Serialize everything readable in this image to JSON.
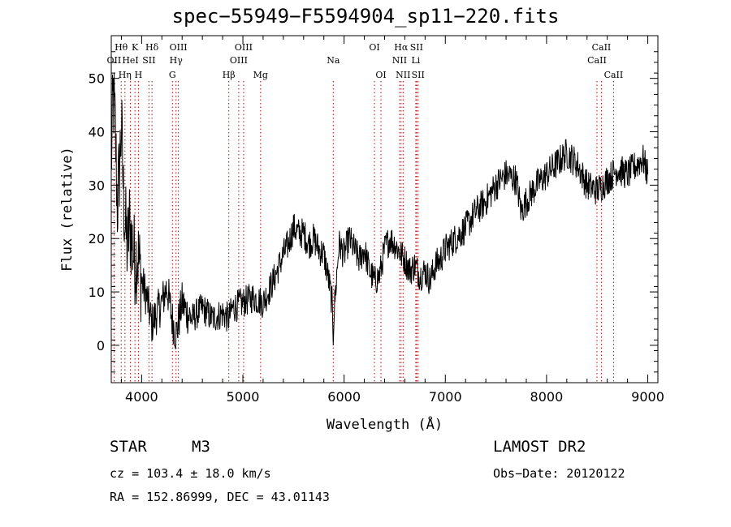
{
  "chart_data": {
    "type": "line",
    "title": "spec−55949−F5594904_sp11−220.fits",
    "xlabel": "Wavelength (Å)",
    "ylabel": "Flux (relative)",
    "xlim": [
      3700,
      9100
    ],
    "ylim": [
      -7,
      58
    ],
    "x_ticks": [
      4000,
      5000,
      6000,
      7000,
      8000,
      9000
    ],
    "x_tick_labels": [
      "4000",
      "5000",
      "6000",
      "7000",
      "8000",
      "9000"
    ],
    "y_ticks": [
      0,
      10,
      20,
      30,
      40,
      50
    ],
    "y_tick_labels": [
      "0",
      "10",
      "20",
      "30",
      "40",
      "50"
    ],
    "series": [
      {
        "color": "#000000",
        "x": [
          3700,
          3720,
          3740,
          3760,
          3780,
          3800,
          3820,
          3840,
          3860,
          3880,
          3900,
          3930,
          3960,
          4000,
          4050,
          4100,
          4150,
          4200,
          4250,
          4300,
          4340,
          4400,
          4450,
          4500,
          4600,
          4700,
          4800,
          4860,
          4900,
          5000,
          5100,
          5200,
          5300,
          5400,
          5450,
          5500,
          5550,
          5600,
          5650,
          5700,
          5750,
          5800,
          5850,
          5880,
          5893,
          5900,
          5950,
          6000,
          6050,
          6100,
          6150,
          6200,
          6250,
          6300,
          6350,
          6400,
          6450,
          6500,
          6563,
          6600,
          6650,
          6700,
          6750,
          6800,
          6850,
          6900,
          6950,
          7000,
          7050,
          7100,
          7150,
          7200,
          7300,
          7400,
          7500,
          7600,
          7700,
          7750,
          7800,
          7900,
          8000,
          8100,
          8200,
          8300,
          8400,
          8500,
          8600,
          8700,
          8800,
          8900,
          8950,
          9000
        ],
        "y": [
          34,
          47,
          40,
          26,
          33,
          41,
          28,
          22,
          18,
          23,
          20,
          16,
          17,
          12,
          9,
          4,
          6,
          8,
          11,
          5,
          2,
          8,
          6,
          5,
          7,
          5,
          6,
          5,
          7,
          8,
          9,
          8,
          12,
          17,
          19,
          22,
          21,
          21,
          19,
          20,
          18,
          17,
          12,
          8,
          2,
          6,
          19,
          17,
          20,
          18,
          16,
          18,
          14,
          12,
          13,
          18,
          20,
          19,
          17,
          16,
          14,
          15,
          13,
          14,
          12,
          15,
          16,
          18,
          19,
          20,
          21,
          22,
          25,
          27,
          30,
          32,
          31,
          25,
          27,
          30,
          32,
          34,
          36,
          34,
          30,
          29,
          31,
          33,
          32,
          34,
          35,
          32
        ]
      }
    ],
    "line_ids": [
      {
        "name": "OII",
        "wave": 3727,
        "row": 2
      },
      {
        "name": "Hθ",
        "wave": 3798,
        "row": 1
      },
      {
        "name": "Hη",
        "wave": 3835,
        "row": 3
      },
      {
        "name": "HeI",
        "wave": 3889,
        "row": 2
      },
      {
        "name": "K",
        "wave": 3934,
        "row": 1
      },
      {
        "name": "H",
        "wave": 3968,
        "row": 3
      },
      {
        "name": "SII",
        "wave": 4072,
        "row": 2
      },
      {
        "name": "Hδ",
        "wave": 4102,
        "row": 1
      },
      {
        "name": "G",
        "wave": 4304,
        "row": 3
      },
      {
        "name": "Hγ",
        "wave": 4340,
        "row": 2
      },
      {
        "name": "OIII",
        "wave": 4363,
        "row": 1
      },
      {
        "name": "Hβ",
        "wave": 4861,
        "row": 3
      },
      {
        "name": "OIII",
        "wave": 4959,
        "row": 2
      },
      {
        "name": "OIII",
        "wave": 5007,
        "row": 1
      },
      {
        "name": "Mg",
        "wave": 5175,
        "row": 3
      },
      {
        "name": "Na",
        "wave": 5893,
        "row": 2
      },
      {
        "name": "OI",
        "wave": 6300,
        "row": 1
      },
      {
        "name": "OI",
        "wave": 6364,
        "row": 3
      },
      {
        "name": "NII",
        "wave": 6548,
        "row": 2
      },
      {
        "name": "Hα",
        "wave": 6563,
        "row": 1
      },
      {
        "name": "NII",
        "wave": 6583,
        "row": 3
      },
      {
        "name": "Li",
        "wave": 6708,
        "row": 2
      },
      {
        "name": "SII",
        "wave": 6716,
        "row": 1
      },
      {
        "name": "SII",
        "wave": 6731,
        "row": 3
      },
      {
        "name": "CaII",
        "wave": 8498,
        "row": 2
      },
      {
        "name": "CaII",
        "wave": 8542,
        "row": 1
      },
      {
        "name": "CaII",
        "wave": 8662,
        "row": 3
      }
    ],
    "line_id_color": "#cc0000",
    "grid": false,
    "legend": "none"
  },
  "info": {
    "object_class": "STAR",
    "subclass": "M3",
    "survey": "LAMOST DR2",
    "cz": "cz = 103.4 ± 18.0 km/s",
    "obs_date": "Obs−Date: 20120122",
    "ra_dec": "RA = 152.86999, DEC =  43.01143"
  }
}
